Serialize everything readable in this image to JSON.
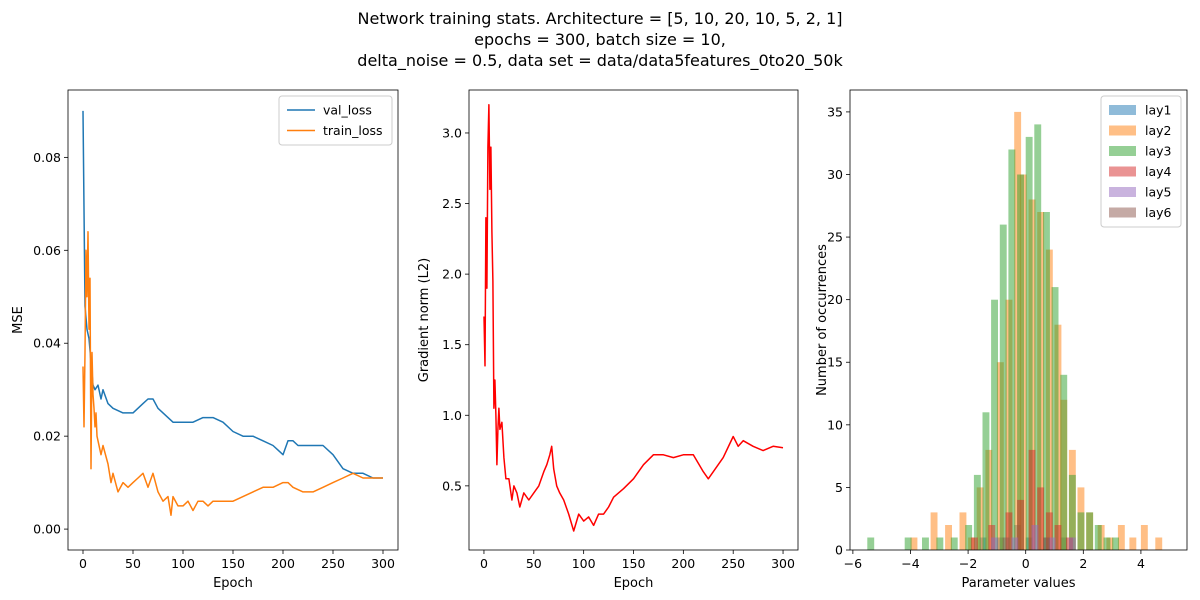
{
  "figure": {
    "title_lines": [
      "Network training stats. Architecture = [5, 10, 20, 10, 5, 2, 1]",
      "epochs = 300, batch size = 10,",
      "delta_noise = 0.5, data set = data/data5features_0to20_50k"
    ]
  },
  "chart_data": [
    {
      "type": "line",
      "title": "",
      "xlabel": "Epoch",
      "ylabel": "MSE",
      "xlim": [
        -15,
        315
      ],
      "ylim": [
        -0.0045,
        0.0945
      ],
      "xticks": [
        0,
        50,
        100,
        150,
        200,
        250,
        300
      ],
      "yticks": [
        0.0,
        0.02,
        0.04,
        0.06,
        0.08
      ],
      "ytick_labels": [
        "0.00",
        "0.02",
        "0.04",
        "0.06",
        "0.08"
      ],
      "legend_position": "top-right",
      "series": [
        {
          "name": "val_loss",
          "color": "#1f77b4",
          "x": [
            0,
            2,
            4,
            6,
            8,
            10,
            12,
            15,
            18,
            20,
            25,
            30,
            40,
            50,
            60,
            65,
            70,
            75,
            80,
            85,
            90,
            100,
            110,
            120,
            130,
            140,
            150,
            160,
            170,
            180,
            190,
            195,
            200,
            205,
            210,
            215,
            220,
            230,
            240,
            250,
            260,
            270,
            280,
            290,
            300
          ],
          "y": [
            0.09,
            0.048,
            0.043,
            0.041,
            0.036,
            0.031,
            0.03,
            0.031,
            0.028,
            0.03,
            0.027,
            0.026,
            0.025,
            0.025,
            0.027,
            0.028,
            0.028,
            0.026,
            0.025,
            0.024,
            0.023,
            0.023,
            0.023,
            0.024,
            0.024,
            0.023,
            0.021,
            0.02,
            0.02,
            0.019,
            0.018,
            0.017,
            0.016,
            0.019,
            0.019,
            0.018,
            0.018,
            0.018,
            0.018,
            0.016,
            0.013,
            0.012,
            0.012,
            0.011,
            0.011
          ]
        },
        {
          "name": "train_loss",
          "color": "#ff7f0e",
          "x": [
            0,
            1,
            2,
            3,
            4,
            5,
            6,
            7,
            8,
            9,
            10,
            11,
            12,
            13,
            14,
            15,
            18,
            20,
            25,
            28,
            30,
            35,
            40,
            45,
            50,
            55,
            60,
            65,
            70,
            75,
            80,
            85,
            88,
            90,
            95,
            100,
            105,
            110,
            115,
            120,
            125,
            130,
            140,
            150,
            160,
            170,
            180,
            190,
            200,
            205,
            210,
            220,
            230,
            240,
            250,
            260,
            270,
            280,
            290,
            300
          ],
          "y": [
            0.035,
            0.022,
            0.038,
            0.06,
            0.05,
            0.064,
            0.043,
            0.054,
            0.013,
            0.038,
            0.029,
            0.026,
            0.022,
            0.025,
            0.02,
            0.019,
            0.016,
            0.018,
            0.014,
            0.01,
            0.012,
            0.008,
            0.01,
            0.009,
            0.01,
            0.011,
            0.012,
            0.009,
            0.012,
            0.008,
            0.006,
            0.007,
            0.003,
            0.007,
            0.005,
            0.005,
            0.006,
            0.004,
            0.006,
            0.006,
            0.005,
            0.006,
            0.006,
            0.006,
            0.007,
            0.008,
            0.009,
            0.009,
            0.01,
            0.01,
            0.009,
            0.008,
            0.008,
            0.009,
            0.01,
            0.011,
            0.012,
            0.011,
            0.011,
            0.011
          ]
        }
      ]
    },
    {
      "type": "line",
      "title": "",
      "xlabel": "Epoch",
      "ylabel": "Gradient norm (L2)",
      "xlim": [
        -15,
        315
      ],
      "ylim": [
        0.0456,
        3.3044
      ],
      "xticks": [
        0,
        50,
        100,
        150,
        200,
        250,
        300
      ],
      "yticks": [
        0.5,
        1.0,
        1.5,
        2.0,
        2.5,
        3.0
      ],
      "ytick_labels": [
        "0.5",
        "1.0",
        "1.5",
        "2.0",
        "2.5",
        "3.0"
      ],
      "series": [
        {
          "name": "",
          "color": "#ff0000",
          "x": [
            0,
            1,
            2,
            3,
            4,
            5,
            6,
            7,
            8,
            9,
            10,
            11,
            12,
            13,
            14,
            15,
            16,
            18,
            20,
            22,
            25,
            28,
            30,
            33,
            36,
            40,
            45,
            50,
            55,
            60,
            63,
            66,
            68,
            70,
            73,
            76,
            80,
            85,
            90,
            95,
            100,
            105,
            110,
            115,
            120,
            125,
            130,
            140,
            150,
            160,
            170,
            180,
            190,
            200,
            210,
            220,
            225,
            230,
            240,
            250,
            255,
            260,
            270,
            280,
            290,
            300
          ],
          "y": [
            1.7,
            1.35,
            2.4,
            1.9,
            2.9,
            3.2,
            2.6,
            2.9,
            2.3,
            1.95,
            1.05,
            1.25,
            1.0,
            0.65,
            0.9,
            1.05,
            0.9,
            0.95,
            0.7,
            0.55,
            0.55,
            0.4,
            0.5,
            0.45,
            0.35,
            0.45,
            0.4,
            0.45,
            0.5,
            0.6,
            0.65,
            0.72,
            0.78,
            0.62,
            0.5,
            0.45,
            0.4,
            0.3,
            0.18,
            0.3,
            0.25,
            0.28,
            0.22,
            0.3,
            0.3,
            0.35,
            0.42,
            0.48,
            0.55,
            0.65,
            0.72,
            0.72,
            0.7,
            0.72,
            0.72,
            0.6,
            0.55,
            0.6,
            0.7,
            0.85,
            0.78,
            0.82,
            0.78,
            0.75,
            0.78,
            0.77
          ]
        }
      ]
    },
    {
      "type": "histogram",
      "title": "",
      "xlabel": "Parameter values",
      "ylabel": "Number of occurrences",
      "xlim": [
        -6.1,
        5.6
      ],
      "ylim": [
        0,
        36.75
      ],
      "xticks": [
        -6,
        -4,
        -2,
        0,
        2,
        4
      ],
      "xtick_labels": [
        "−6",
        "−4",
        "−2",
        "0",
        "2",
        "4"
      ],
      "yticks": [
        0,
        5,
        10,
        15,
        20,
        25,
        30,
        35
      ],
      "legend_position": "top-right",
      "bin_width": 0.24,
      "series": [
        {
          "name": "lay1",
          "color": "#1f77b4",
          "bins": [
            [
              -1.6,
              1
            ],
            [
              -1.0,
              1
            ],
            [
              -0.4,
              2
            ],
            [
              0.0,
              1
            ],
            [
              0.6,
              1
            ],
            [
              1.2,
              1
            ]
          ]
        },
        {
          "name": "lay2",
          "color": "#ff7f0e",
          "bins": [
            [
              -4.0,
              1
            ],
            [
              -3.3,
              3
            ],
            [
              -2.8,
              2
            ],
            [
              -2.3,
              3
            ],
            [
              -2.0,
              1
            ],
            [
              -1.7,
              5
            ],
            [
              -1.4,
              8
            ],
            [
              -1.0,
              15
            ],
            [
              -0.7,
              20
            ],
            [
              -0.4,
              35
            ],
            [
              -0.2,
              30
            ],
            [
              0.1,
              28
            ],
            [
              0.4,
              27
            ],
            [
              0.7,
              24
            ],
            [
              1.0,
              18
            ],
            [
              1.2,
              12
            ],
            [
              1.5,
              8
            ],
            [
              1.8,
              5
            ],
            [
              2.1,
              3
            ],
            [
              2.5,
              2
            ],
            [
              2.8,
              1
            ],
            [
              3.2,
              2
            ],
            [
              3.6,
              1
            ],
            [
              4.0,
              2
            ],
            [
              4.5,
              1
            ]
          ]
        },
        {
          "name": "lay3",
          "color": "#2ca02c",
          "bins": [
            [
              -5.5,
              1
            ],
            [
              -4.2,
              1
            ],
            [
              -3.6,
              1
            ],
            [
              -3.1,
              1
            ],
            [
              -2.6,
              1
            ],
            [
              -2.1,
              2
            ],
            [
              -1.8,
              6
            ],
            [
              -1.5,
              11
            ],
            [
              -1.2,
              20
            ],
            [
              -0.9,
              26
            ],
            [
              -0.6,
              32
            ],
            [
              -0.3,
              30
            ],
            [
              0.0,
              33
            ],
            [
              0.3,
              34
            ],
            [
              0.6,
              27
            ],
            [
              0.9,
              21
            ],
            [
              1.2,
              14
            ],
            [
              1.5,
              6
            ],
            [
              1.8,
              3
            ],
            [
              2.1,
              3
            ],
            [
              2.4,
              2
            ],
            [
              2.7,
              1
            ],
            [
              3.0,
              1
            ]
          ]
        },
        {
          "name": "lay4",
          "color": "#d62728",
          "bins": [
            [
              -1.9,
              1
            ],
            [
              -1.3,
              2
            ],
            [
              -0.7,
              3
            ],
            [
              -0.3,
              4
            ],
            [
              0.1,
              8
            ],
            [
              0.4,
              5
            ],
            [
              0.7,
              3
            ],
            [
              1.0,
              2
            ],
            [
              1.4,
              1
            ]
          ]
        },
        {
          "name": "lay5",
          "color": "#9467bd",
          "bins": [
            [
              -1.2,
              1
            ],
            [
              -0.5,
              1
            ],
            [
              0.2,
              2
            ],
            [
              0.8,
              1
            ],
            [
              1.5,
              1
            ]
          ]
        },
        {
          "name": "lay6",
          "color": "#8c564b",
          "bins": [
            [
              -0.8,
              1
            ],
            [
              0.6,
              1
            ]
          ]
        }
      ]
    }
  ]
}
